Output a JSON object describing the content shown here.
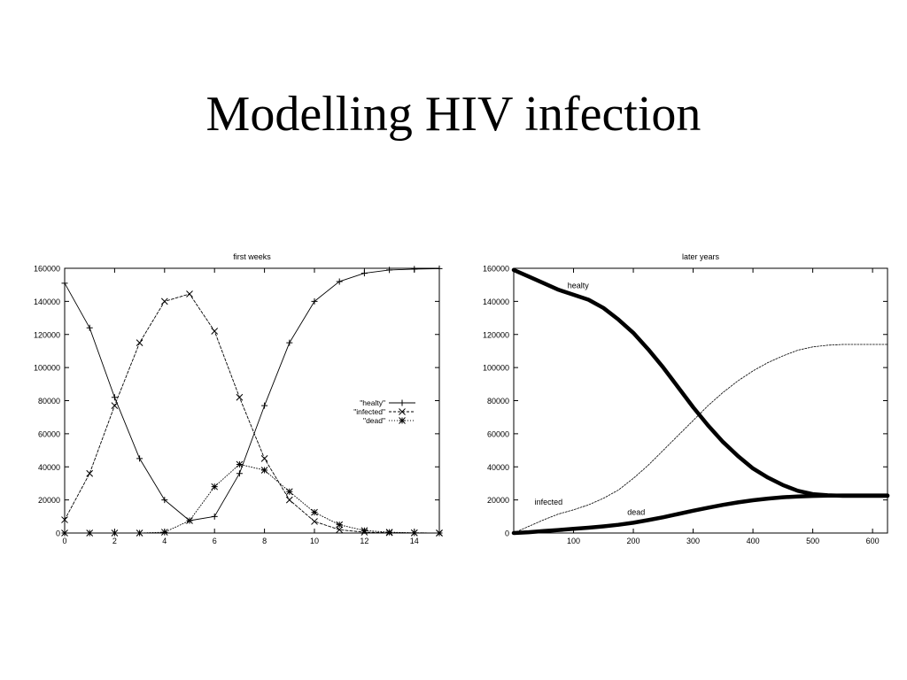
{
  "slide": {
    "title": "Modelling HIV infection"
  },
  "chart_data": [
    {
      "type": "line",
      "title": "first weeks",
      "xlabel": "",
      "ylabel": "",
      "xlim": [
        0,
        15
      ],
      "ylim": [
        0,
        160000
      ],
      "xticks": [
        0,
        2,
        4,
        6,
        8,
        10,
        12,
        14
      ],
      "yticks": [
        0,
        20000,
        40000,
        60000,
        80000,
        100000,
        120000,
        140000,
        160000
      ],
      "grid": false,
      "legend_position": "right",
      "series": [
        {
          "name": "\"healty\"",
          "marker": "plus",
          "dash": "solid",
          "x": [
            0,
            1,
            2,
            3,
            4,
            5,
            6,
            7,
            8,
            9,
            10,
            11,
            12,
            13,
            14,
            15
          ],
          "y": [
            151000,
            124000,
            82000,
            45000,
            20000,
            7500,
            10000,
            36000,
            77000,
            115000,
            140000,
            152000,
            157000,
            159000,
            159500,
            159800
          ]
        },
        {
          "name": "\"infected\"",
          "marker": "x",
          "dash": "dashed",
          "x": [
            0,
            1,
            2,
            3,
            4,
            5,
            6,
            7,
            8,
            9,
            10,
            11,
            12,
            13,
            14,
            15
          ],
          "y": [
            8000,
            36000,
            77000,
            115000,
            140000,
            144500,
            122000,
            82000,
            45000,
            20000,
            7000,
            2000,
            500,
            200,
            100,
            0
          ]
        },
        {
          "name": "\"dead\"",
          "marker": "star",
          "dash": "dotted",
          "x": [
            0,
            1,
            2,
            3,
            4,
            5,
            6,
            7,
            8,
            9,
            10,
            11,
            12,
            13,
            14,
            15
          ],
          "y": [
            0,
            0,
            0,
            0,
            500,
            7500,
            28000,
            41500,
            38000,
            25000,
            12500,
            5000,
            1500,
            500,
            100,
            0
          ]
        }
      ]
    },
    {
      "type": "line",
      "title": "later years",
      "xlabel": "",
      "ylabel": "",
      "xlim": [
        0,
        625
      ],
      "ylim": [
        0,
        160000
      ],
      "xticks": [
        100,
        200,
        300,
        400,
        500,
        600
      ],
      "yticks": [
        0,
        20000,
        40000,
        60000,
        80000,
        100000,
        120000,
        140000,
        160000
      ],
      "grid": false,
      "series": [
        {
          "name": "healty",
          "style": "bold",
          "x": [
            0,
            25,
            50,
            75,
            100,
            125,
            150,
            175,
            200,
            225,
            250,
            275,
            300,
            325,
            350,
            375,
            400,
            425,
            450,
            475,
            500,
            525,
            550,
            575,
            600,
            625
          ],
          "y": [
            159000,
            155000,
            151000,
            147000,
            144000,
            141000,
            136000,
            129000,
            121000,
            111000,
            100000,
            88000,
            76000,
            65000,
            55000,
            46500,
            39000,
            33500,
            29000,
            25500,
            23500,
            22800,
            22500,
            22500,
            22500,
            22500
          ]
        },
        {
          "name": "infected",
          "style": "thin-dashed",
          "x": [
            0,
            25,
            50,
            75,
            100,
            125,
            150,
            175,
            200,
            225,
            250,
            275,
            300,
            325,
            350,
            375,
            400,
            425,
            450,
            475,
            500,
            525,
            550,
            575,
            600,
            625
          ],
          "y": [
            0,
            4000,
            8000,
            11500,
            14000,
            17000,
            21000,
            26000,
            33000,
            41000,
            50000,
            59000,
            68000,
            77000,
            85000,
            92000,
            98000,
            103000,
            107000,
            110500,
            112500,
            113500,
            114000,
            114000,
            114000,
            114000
          ]
        },
        {
          "name": "dead",
          "style": "bold",
          "x": [
            0,
            25,
            50,
            75,
            100,
            125,
            150,
            175,
            200,
            225,
            250,
            275,
            300,
            325,
            350,
            375,
            400,
            425,
            450,
            475,
            500,
            525,
            550,
            575,
            600,
            625
          ],
          "y": [
            0,
            500,
            1200,
            1800,
            2500,
            3200,
            4000,
            5000,
            6200,
            7800,
            9500,
            11500,
            13500,
            15300,
            17000,
            18500,
            19800,
            20800,
            21600,
            22100,
            22400,
            22600,
            22700,
            22700,
            22700,
            22700
          ]
        }
      ],
      "annotations": [
        {
          "text": "healty",
          "x": 90,
          "y": 148000
        },
        {
          "text": "infected",
          "x": 35,
          "y": 17000
        },
        {
          "text": "dead",
          "x": 190,
          "y": 11000
        }
      ]
    }
  ]
}
